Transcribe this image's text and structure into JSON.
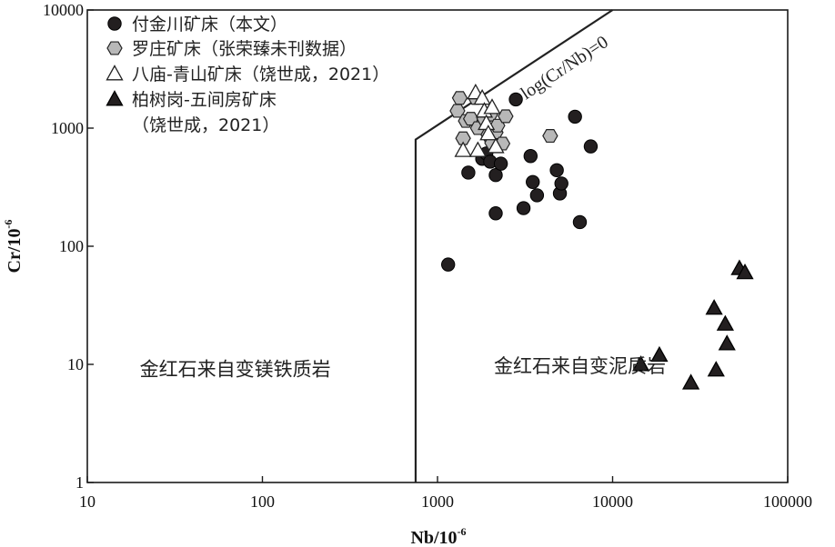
{
  "chart_data": {
    "type": "scatter",
    "title": "",
    "xlabel": "Nb/10",
    "xlabel_sup": "-6",
    "ylabel": "Cr/10",
    "ylabel_sup": "-6",
    "x_scale": "log",
    "y_scale": "log",
    "xlim": [
      10,
      100000
    ],
    "ylim": [
      1,
      10000
    ],
    "x_ticks": [
      {
        "value": 10,
        "label": "10"
      },
      {
        "value": 100,
        "label": "100"
      },
      {
        "value": 1000,
        "label": "1000"
      },
      {
        "value": 10000,
        "label": "10000"
      },
      {
        "value": 100000,
        "label": "100000"
      }
    ],
    "y_ticks": [
      {
        "value": 1,
        "label": "1"
      },
      {
        "value": 10,
        "label": "10"
      },
      {
        "value": 100,
        "label": "100"
      },
      {
        "value": 1000,
        "label": "1000"
      },
      {
        "value": 10000,
        "label": "10000"
      }
    ],
    "grid": false,
    "legend_position": "top-left",
    "boundary": {
      "label": "log(Cr/Nb)=0",
      "points": [
        [
          750,
          1
        ],
        [
          750,
          800
        ],
        [
          10000,
          10000
        ]
      ]
    },
    "regions": [
      {
        "label": "金红石来自变镁铁质岩",
        "x": 70,
        "y": 8
      },
      {
        "label": "金红石来自变泥质岩",
        "x": 6500,
        "y": 8.5
      }
    ],
    "series": [
      {
        "name": "付金川矿床（本文）",
        "marker": "circle",
        "fill": "#231f20",
        "stroke": "#000000",
        "points": [
          [
            1150,
            70
          ],
          [
            1500,
            420
          ],
          [
            1800,
            550
          ],
          [
            1900,
            610
          ],
          [
            2000,
            520
          ],
          [
            2150,
            400
          ],
          [
            2300,
            500
          ],
          [
            2150,
            190
          ],
          [
            2800,
            1750
          ],
          [
            3100,
            210
          ],
          [
            3400,
            580
          ],
          [
            3500,
            350
          ],
          [
            3700,
            270
          ],
          [
            4800,
            440
          ],
          [
            5000,
            280
          ],
          [
            5100,
            340
          ],
          [
            6100,
            1250
          ],
          [
            6500,
            160
          ],
          [
            7500,
            700
          ]
        ]
      },
      {
        "name": "罗庄矿床（张荣臻未刊数据）",
        "marker": "hexagon",
        "fill": "#b8b8b8",
        "stroke": "#222222",
        "points": [
          [
            1300,
            1400
          ],
          [
            1340,
            1800
          ],
          [
            1400,
            820
          ],
          [
            1450,
            1150
          ],
          [
            1550,
            1200
          ],
          [
            1650,
            1800
          ],
          [
            1700,
            1000
          ],
          [
            1850,
            1200
          ],
          [
            1950,
            880
          ],
          [
            2000,
            1300
          ],
          [
            2050,
            750
          ],
          [
            2150,
            920
          ],
          [
            2200,
            1050
          ],
          [
            2350,
            740
          ],
          [
            2450,
            1260
          ],
          [
            4400,
            860
          ]
        ]
      },
      {
        "name": "八庙-青山矿床（饶世成，2021）",
        "marker": "triangle-open",
        "fill": "#ffffff",
        "stroke": "#222222",
        "points": [
          [
            1400,
            650
          ],
          [
            1650,
            2000
          ],
          [
            1700,
            650
          ],
          [
            1800,
            1800
          ],
          [
            1850,
            1400
          ],
          [
            1900,
            1100
          ],
          [
            1950,
            900
          ],
          [
            2050,
            1500
          ],
          [
            2150,
            700
          ]
        ]
      },
      {
        "name": "柏树岗-五间房矿床",
        "name_line2": "（饶世成，2021）",
        "marker": "triangle-filled",
        "fill": "#231f20",
        "stroke": "#000000",
        "points": [
          [
            14500,
            10
          ],
          [
            18500,
            12
          ],
          [
            28000,
            7
          ],
          [
            38000,
            30
          ],
          [
            39000,
            9
          ],
          [
            44000,
            22
          ],
          [
            45000,
            15
          ],
          [
            53000,
            65
          ],
          [
            57000,
            60
          ]
        ]
      }
    ]
  }
}
